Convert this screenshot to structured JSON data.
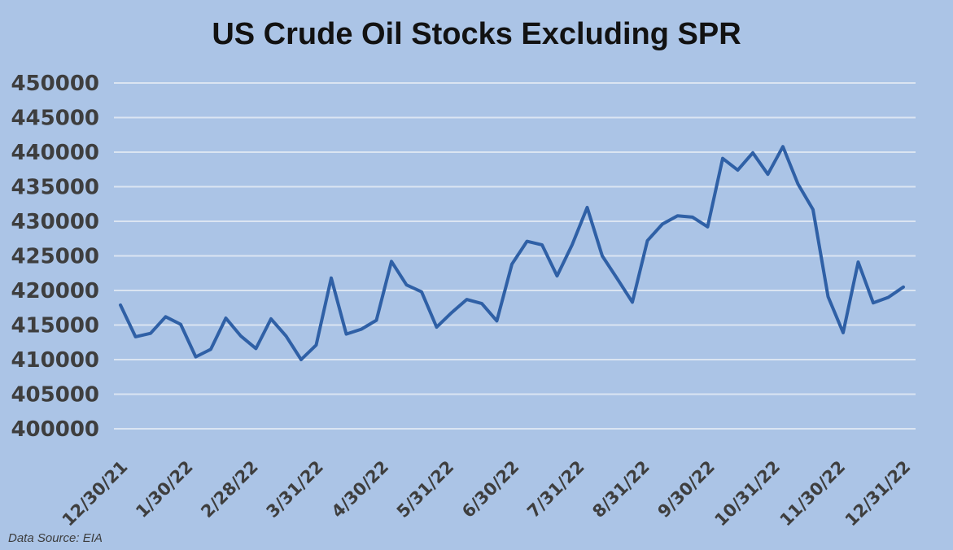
{
  "title": "US Crude Oil Stocks Excluding SPR",
  "source_note": "Data Source: EIA",
  "colors": {
    "background": "#abc4e6",
    "line": "#2f60a6",
    "gridline": "#dbe5f2",
    "axis_label": "#3e3e3e",
    "title_text": "#121212"
  },
  "chart_data": {
    "type": "line",
    "title": "US Crude Oil Stocks Excluding SPR",
    "x": [
      "12/31/21",
      "1/7/22",
      "1/14/22",
      "1/21/22",
      "1/28/22",
      "2/4/22",
      "2/11/22",
      "2/18/22",
      "2/25/22",
      "3/4/22",
      "3/11/22",
      "3/18/22",
      "3/25/22",
      "4/1/22",
      "4/8/22",
      "4/15/22",
      "4/22/22",
      "4/29/22",
      "5/6/22",
      "5/13/22",
      "5/20/22",
      "5/27/22",
      "6/3/22",
      "6/10/22",
      "6/17/22",
      "6/24/22",
      "7/1/22",
      "7/8/22",
      "7/15/22",
      "7/22/22",
      "7/29/22",
      "8/5/22",
      "8/12/22",
      "8/19/22",
      "8/26/22",
      "9/2/22",
      "9/9/22",
      "9/16/22",
      "9/23/22",
      "9/30/22",
      "10/7/22",
      "10/14/22",
      "10/21/22",
      "10/28/22",
      "11/4/22",
      "11/11/22",
      "11/18/22",
      "11/25/22",
      "12/2/22",
      "12/9/22",
      "12/16/22",
      "12/23/22",
      "12/30/22"
    ],
    "values": [
      417900,
      413300,
      413800,
      416200,
      415100,
      410400,
      411500,
      416000,
      413400,
      411600,
      415900,
      413400,
      410000,
      412100,
      421800,
      413700,
      414400,
      415700,
      424200,
      420800,
      419800,
      414700,
      416800,
      418700,
      418100,
      415600,
      423800,
      427100,
      426600,
      422100,
      426600,
      432000,
      425000,
      421700,
      418300,
      427200,
      429600,
      430800,
      430600,
      429200,
      439100,
      437400,
      439900,
      436800,
      440800,
      435400,
      431700,
      419100,
      413900,
      424100,
      418200,
      419000,
      420500
    ],
    "x_tick_labels": [
      "12/30/21",
      "1/30/22",
      "2/28/22",
      "3/31/22",
      "4/30/22",
      "5/31/22",
      "6/30/22",
      "7/31/22",
      "8/31/22",
      "9/30/22",
      "10/31/22",
      "11/30/22",
      "12/31/22"
    ],
    "y_tick_labels": [
      "450000",
      "445000",
      "440000",
      "435000",
      "430000",
      "425000",
      "420000",
      "415000",
      "410000",
      "405000",
      "400000"
    ],
    "y_tick_values": [
      450000,
      445000,
      440000,
      435000,
      430000,
      425000,
      420000,
      415000,
      410000,
      405000,
      400000
    ],
    "ylim": [
      400000,
      450000
    ],
    "xlabel": "",
    "ylabel": "",
    "grid": "horizontal",
    "legend": "none"
  }
}
